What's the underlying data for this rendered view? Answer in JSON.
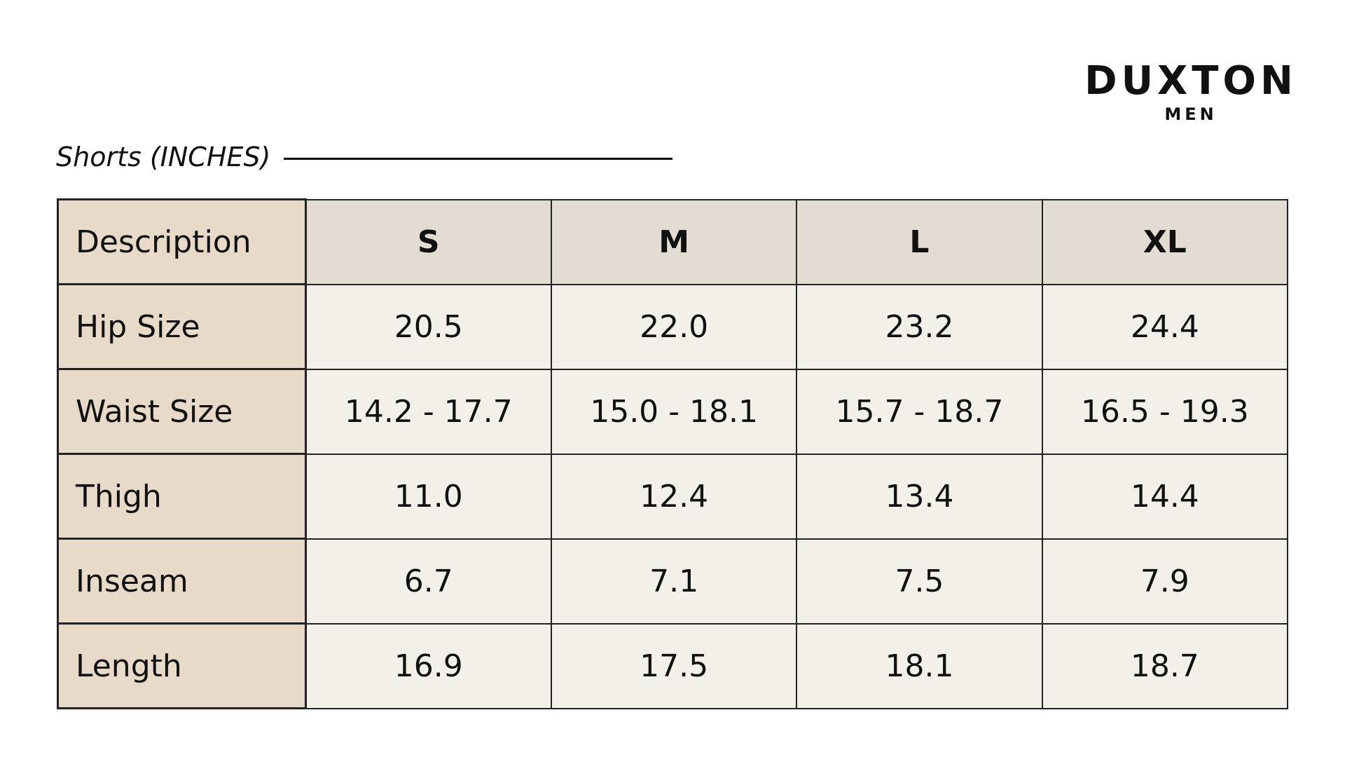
{
  "brand": {
    "name": "DUXTON",
    "sub": "MEN"
  },
  "section_title": "Shorts (INCHES)",
  "table": {
    "header": [
      "Description",
      "S",
      "M",
      "L",
      "XL"
    ],
    "rows": [
      [
        "Hip Size",
        "20.5",
        "22.0",
        "23.2",
        "24.4"
      ],
      [
        "Waist Size",
        "14.2 - 17.7",
        "15.0 - 18.1",
        "15.7 - 18.7",
        "16.5 - 19.3"
      ],
      [
        "Thigh",
        "11.0",
        "12.4",
        "13.4",
        "14.4"
      ],
      [
        "Inseam",
        "6.7",
        "7.1",
        "7.5",
        "7.9"
      ],
      [
        "Length",
        "16.9",
        "17.5",
        "18.1",
        "18.7"
      ]
    ]
  }
}
